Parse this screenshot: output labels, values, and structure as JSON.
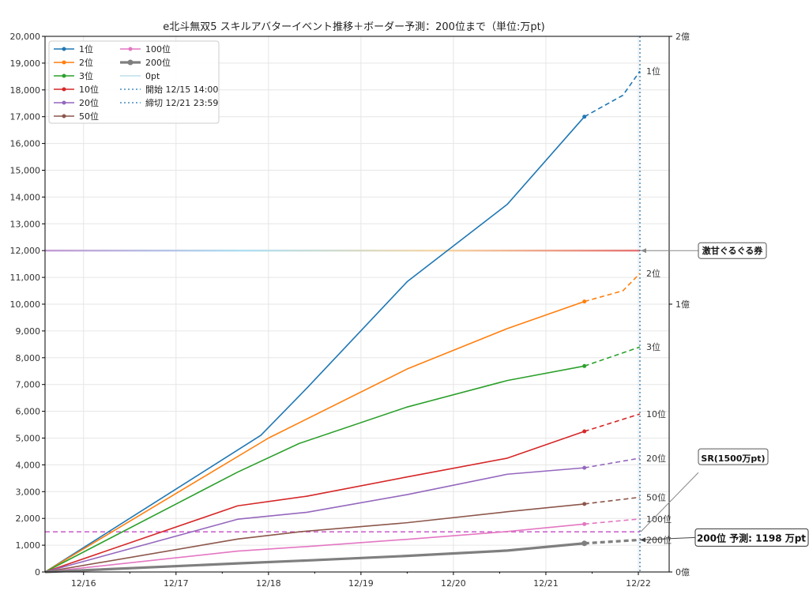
{
  "chart_data": {
    "type": "line",
    "title": "e北斗無双5 スキルアバターイベント推移＋ボーダー予測：200位まで（単位:万pt)",
    "xlabel": "",
    "ylabel": "",
    "x_ticks": [
      "12/16",
      "12/17",
      "12/18",
      "12/19",
      "12/20",
      "12/21",
      "12/22"
    ],
    "xlim": [
      "12/15 14:00",
      "12/22 08:00"
    ],
    "ylim": [
      0,
      20000
    ],
    "y_ticks": [
      "0",
      "1,000",
      "2,000",
      "3,000",
      "4,000",
      "5,000",
      "6,000",
      "7,000",
      "8,000",
      "9,000",
      "10,000",
      "11,000",
      "12,000",
      "13,000",
      "14,000",
      "15,000",
      "16,000",
      "17,000",
      "18,000",
      "19,000",
      "20,000"
    ],
    "y2_ticks": [
      {
        "value": 0,
        "label": "0億"
      },
      {
        "value": 10000,
        "label": "1億"
      },
      {
        "value": 20000,
        "label": "2億"
      }
    ],
    "grid": true,
    "legend_position": "top-left",
    "series": [
      {
        "name": "1位",
        "color": "#1f77b4",
        "width": 1.6,
        "points": [
          [
            "12/15 14:00",
            0
          ],
          [
            "12/17 22:00",
            5100
          ],
          [
            "12/18 10:00",
            6870
          ],
          [
            "12/19 12:00",
            10840
          ],
          [
            "12/20 14:00",
            13730
          ],
          [
            "12/21 10:00",
            17000
          ]
        ],
        "forecast": [
          [
            "12/21 10:00",
            17000
          ],
          [
            "12/21 20:00",
            17800
          ],
          [
            "12/22 00:00",
            18700
          ]
        ],
        "end_label": "1位"
      },
      {
        "name": "2位",
        "color": "#ff7f0e",
        "width": 1.6,
        "points": [
          [
            "12/15 14:00",
            0
          ],
          [
            "12/18 00:00",
            5000
          ],
          [
            "12/19 12:00",
            7580
          ],
          [
            "12/20 14:00",
            9090
          ],
          [
            "12/21 10:00",
            10100
          ]
        ],
        "forecast": [
          [
            "12/21 10:00",
            10100
          ],
          [
            "12/21 20:00",
            10500
          ],
          [
            "12/22 00:00",
            11150
          ]
        ],
        "end_label": "2位"
      },
      {
        "name": "3位",
        "color": "#2ca02c",
        "width": 1.6,
        "points": [
          [
            "12/15 14:00",
            0
          ],
          [
            "12/17 16:00",
            3730
          ],
          [
            "12/18 08:00",
            4800
          ],
          [
            "12/19 12:00",
            6160
          ],
          [
            "12/20 14:00",
            7150
          ],
          [
            "12/21 10:00",
            7690
          ]
        ],
        "forecast": [
          [
            "12/21 10:00",
            7690
          ],
          [
            "12/22 00:00",
            8400
          ]
        ],
        "end_label": "3位"
      },
      {
        "name": "10位",
        "color": "#d62728",
        "width": 1.6,
        "points": [
          [
            "12/15 14:00",
            0
          ],
          [
            "12/17 16:00",
            2470
          ],
          [
            "12/18 10:00",
            2830
          ],
          [
            "12/19 12:00",
            3550
          ],
          [
            "12/20 14:00",
            4250
          ],
          [
            "12/21 10:00",
            5250
          ]
        ],
        "forecast": [
          [
            "12/21 10:00",
            5250
          ],
          [
            "12/22 00:00",
            5900
          ]
        ],
        "end_label": "10位"
      },
      {
        "name": "20位",
        "color": "#9467bd",
        "width": 1.6,
        "points": [
          [
            "12/15 14:00",
            0
          ],
          [
            "12/17 16:00",
            1970
          ],
          [
            "12/18 10:00",
            2230
          ],
          [
            "12/19 12:00",
            2890
          ],
          [
            "12/20 14:00",
            3650
          ],
          [
            "12/21 10:00",
            3890
          ]
        ],
        "forecast": [
          [
            "12/21 10:00",
            3890
          ],
          [
            "12/22 00:00",
            4250
          ]
        ],
        "end_label": "20位"
      },
      {
        "name": "50位",
        "color": "#8c564b",
        "width": 1.6,
        "points": [
          [
            "12/15 14:00",
            0
          ],
          [
            "12/17 16:00",
            1230
          ],
          [
            "12/18 08:00",
            1500
          ],
          [
            "12/19 12:00",
            1840
          ],
          [
            "12/20 14:00",
            2250
          ],
          [
            "12/21 10:00",
            2540
          ]
        ],
        "forecast": [
          [
            "12/21 10:00",
            2540
          ],
          [
            "12/22 00:00",
            2790
          ]
        ],
        "end_label": "50位"
      },
      {
        "name": "100位",
        "color": "#e377c2",
        "width": 1.6,
        "points": [
          [
            "12/15 14:00",
            0
          ],
          [
            "12/17 16:00",
            780
          ],
          [
            "12/18 10:00",
            950
          ],
          [
            "12/19 12:00",
            1220
          ],
          [
            "12/20 14:00",
            1510
          ],
          [
            "12/21 10:00",
            1790
          ]
        ],
        "forecast": [
          [
            "12/21 10:00",
            1790
          ],
          [
            "12/22 00:00",
            1980
          ]
        ],
        "end_label": "100位"
      },
      {
        "name": "200位",
        "color": "#7f7f7f",
        "width": 3.2,
        "points": [
          [
            "12/15 14:00",
            0
          ],
          [
            "12/17 16:00",
            320
          ],
          [
            "12/18 10:00",
            430
          ],
          [
            "12/19 12:00",
            600
          ],
          [
            "12/20 14:00",
            800
          ],
          [
            "12/21 10:00",
            1070
          ]
        ],
        "forecast": [
          [
            "12/21 10:00",
            1070
          ],
          [
            "12/22 00:00",
            1198
          ]
        ],
        "end_label": "200位"
      }
    ],
    "reference_lines": [
      {
        "name": "0pt",
        "type": "h",
        "value": 0,
        "color": "#add8e6"
      },
      {
        "name": "開始 12/15 14:00",
        "type": "v",
        "value": "12/15 14:00",
        "color": "#1f77b4",
        "style": "dotted"
      },
      {
        "name": "締切 12/21 23:59",
        "type": "v",
        "value": "12/21 23:59",
        "color": "#1f77b4",
        "style": "dotted"
      }
    ],
    "thresholds": [
      {
        "label": "激甘ぐるぐる券",
        "value": 12000,
        "style": "gradient",
        "colors": [
          "#c39bd3",
          "#aedff2",
          "#f7d7a6",
          "#e57373"
        ]
      },
      {
        "label": "SR(1500万pt)",
        "value": 1500,
        "style": "dashed",
        "color": "#cc66cc"
      }
    ],
    "prediction": {
      "label": "200位 予測: 1198 万pt",
      "value": 1198
    }
  }
}
